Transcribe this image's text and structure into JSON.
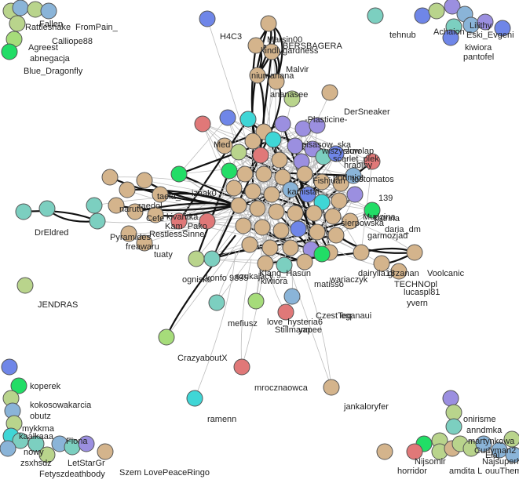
{
  "colors": {
    "tan": "#d4b48c",
    "blue": "#6f86e8",
    "teal": "#7ccfc0",
    "cyan": "#3fd6d6",
    "green": "#22dd66",
    "olive": "#b9d48c",
    "purple": "#9b8fe0",
    "red": "#e07878",
    "sky": "#8ab4d8",
    "lime": "#a6dc7a"
  },
  "labels": [
    "Rattlesnake",
    "FromPain_",
    "Fallen",
    "Calliope88",
    "Agreest",
    "abnegacja",
    "Blue_Dragonfly",
    "H4C3",
    "Marsin00",
    "BERSBAGERA",
    "kindlygardness",
    "tehnub",
    "Lilithy",
    "Achaion",
    "Eski_Evgeni",
    "kiwiora",
    "pantofel",
    "Malvir",
    "niumariana",
    "ananasee",
    "DerSneaker",
    "-Plasticine-",
    "Med",
    "pisasow_ska",
    "wiszyslow",
    "zurolap",
    "scarlet_plek",
    "hrabiny",
    "podmiot",
    "tostomatos",
    "Fishjuan",
    "139",
    "kamistat",
    "Mudzina",
    "sierpowska",
    "izaak0",
    "taela_",
    "Cefe",
    "raedol",
    "naruto",
    "kivaritka",
    "Kam_Pako",
    "RestlessSinner",
    "DrEldred",
    "Pyramides",
    "freawaru",
    "tuaty",
    "katrina",
    "daria_dm",
    "garmozjad",
    "dairylia13",
    "grzanan",
    "Voolcanic",
    "TECHNOpl",
    "lucaspl81",
    "yvern",
    "ognisko",
    "konfo",
    "9895",
    "szukajacy",
    "Klang_Hasun",
    "kiwiora",
    "wariaczyk",
    "matisso",
    "JENDRAS",
    "mefiusz",
    "love_hysteria6",
    "Stillmann",
    "CzestTeq",
    "yapee",
    "eganaui",
    "CrazyaboutX",
    "mrocznaowca",
    "jankaloryfer",
    "ramenn",
    "koperek",
    "kokosowakarcia",
    "obutz",
    "mykkma",
    "kaalkaaa",
    "Fiona",
    "nowy",
    "zsxhsdz",
    "Szem LovePeaceRingo",
    "Fetyszdeathbody",
    "LetStarGr",
    "Nijsomir",
    "onirisme",
    "anndmka",
    "martynkowa",
    "Curlyman2",
    "Elaj",
    "horridor",
    "amdita L",
    "Najsuperhead",
    "ouuTheme"
  ],
  "label_layout": [],
  "nodes": [],
  "edges": []
}
